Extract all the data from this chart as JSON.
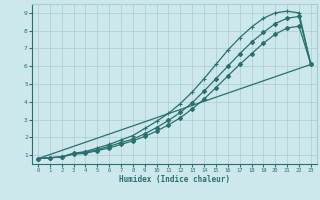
{
  "xlabel": "Humidex (Indice chaleur)",
  "background_color": "#cce8ec",
  "grid_color": "#aaccd0",
  "line_color": "#2a7070",
  "xlim": [
    -0.5,
    23.5
  ],
  "ylim": [
    0.5,
    9.5
  ],
  "xticks": [
    0,
    1,
    2,
    3,
    4,
    5,
    6,
    7,
    8,
    9,
    10,
    11,
    12,
    13,
    14,
    15,
    16,
    17,
    18,
    19,
    20,
    21,
    22,
    23
  ],
  "yticks": [
    1,
    2,
    3,
    4,
    5,
    6,
    7,
    8,
    9
  ],
  "line1_x": [
    0,
    1,
    2,
    3,
    4,
    5,
    6,
    7,
    8,
    9,
    10,
    11,
    12,
    13,
    14,
    15,
    16,
    17,
    18,
    19,
    20,
    21,
    22,
    23
  ],
  "line1_y": [
    0.8,
    0.85,
    0.9,
    1.1,
    1.2,
    1.4,
    1.6,
    1.85,
    2.1,
    2.5,
    2.9,
    3.35,
    3.9,
    4.55,
    5.3,
    6.1,
    6.9,
    7.6,
    8.2,
    8.7,
    9.0,
    9.1,
    9.0,
    6.1
  ],
  "line2_x": [
    0,
    1,
    2,
    3,
    4,
    5,
    6,
    7,
    8,
    9,
    10,
    11,
    12,
    13,
    14,
    15,
    16,
    17,
    18,
    19,
    20,
    21,
    22,
    23
  ],
  "line2_y": [
    0.8,
    0.85,
    0.9,
    1.1,
    1.15,
    1.3,
    1.5,
    1.7,
    1.9,
    2.2,
    2.55,
    2.95,
    3.4,
    3.95,
    4.6,
    5.3,
    6.0,
    6.7,
    7.35,
    7.9,
    8.4,
    8.7,
    8.8,
    6.1
  ],
  "line3_x": [
    0,
    1,
    2,
    3,
    4,
    5,
    6,
    7,
    8,
    9,
    10,
    11,
    12,
    13,
    14,
    15,
    16,
    17,
    18,
    19,
    20,
    21,
    22,
    23
  ],
  "line3_y": [
    0.8,
    0.85,
    0.9,
    1.05,
    1.1,
    1.25,
    1.4,
    1.6,
    1.8,
    2.05,
    2.35,
    2.7,
    3.1,
    3.6,
    4.15,
    4.8,
    5.45,
    6.1,
    6.7,
    7.3,
    7.8,
    8.15,
    8.25,
    6.1
  ],
  "line4_x": [
    0,
    23
  ],
  "line4_y": [
    0.8,
    6.1
  ]
}
